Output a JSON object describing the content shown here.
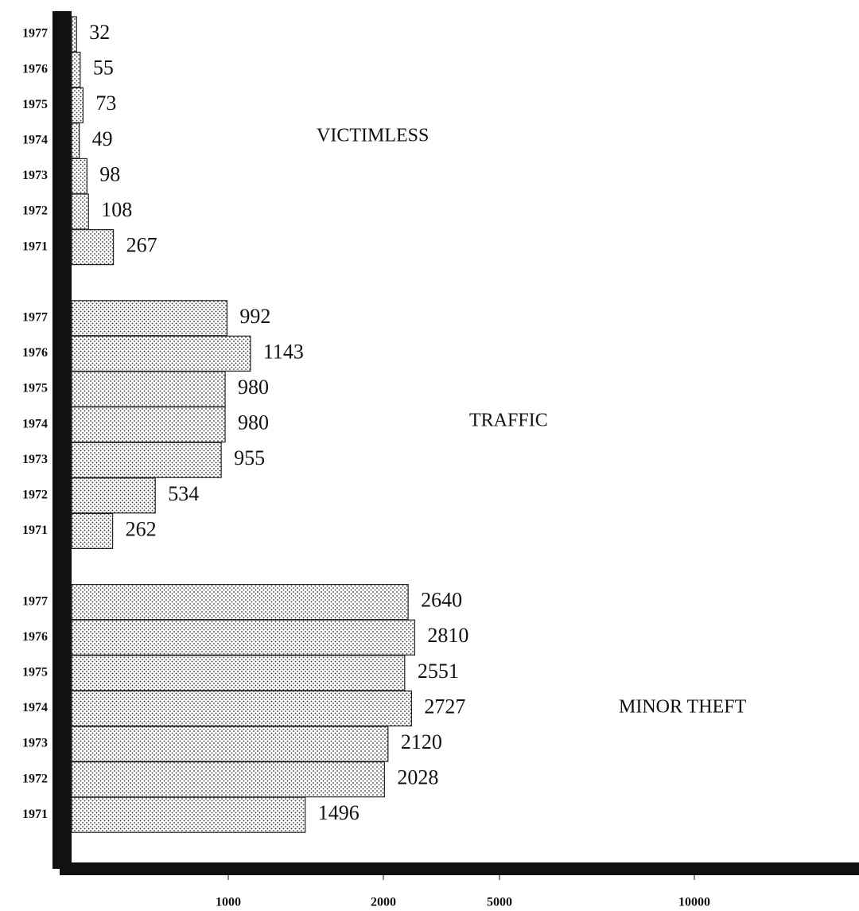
{
  "chart_data": {
    "type": "bar",
    "orientation": "horizontal",
    "groups": [
      {
        "name": "VICTIMLESS",
        "categories": [
          "1977",
          "1976",
          "1975",
          "1974",
          "1973",
          "1972",
          "1971"
        ],
        "values": [
          32,
          55,
          73,
          49,
          98,
          108,
          267
        ]
      },
      {
        "name": "TRAFFIC",
        "categories": [
          "1977",
          "1976",
          "1975",
          "1974",
          "1973",
          "1972",
          "1971"
        ],
        "values": [
          992,
          1143,
          980,
          980,
          955,
          534,
          262
        ]
      },
      {
        "name": "MINOR THEFT",
        "categories": [
          "1977",
          "1976",
          "1975",
          "1974",
          "1973",
          "1972",
          "1971"
        ],
        "values": [
          2640,
          2810,
          2551,
          2727,
          2120,
          2028,
          1496
        ]
      }
    ],
    "xlim": [
      0,
      14200
    ],
    "xticks": [
      1000,
      2000,
      5000,
      10000
    ],
    "color": "#e8e8e8"
  }
}
